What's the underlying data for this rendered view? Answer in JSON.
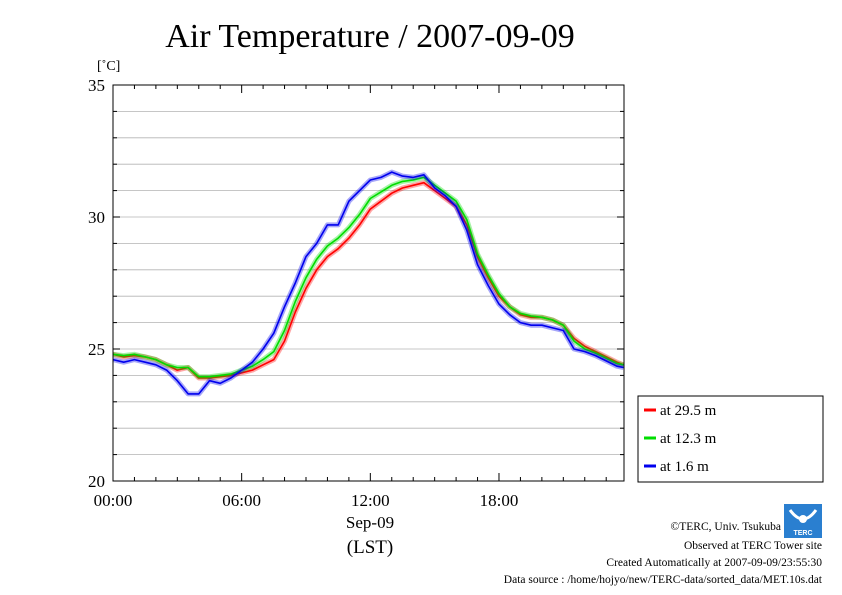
{
  "chart_data": {
    "type": "line",
    "title": "Air Temperature / 2007-09-09",
    "ylabel": "[˚C]",
    "xlabel_date": "Sep-09",
    "xlabel_tz": "(LST)",
    "ylim": [
      20,
      35
    ],
    "xlim": [
      0,
      23.83
    ],
    "y_ticks": [
      20,
      25,
      30,
      35
    ],
    "x_ticks": [
      {
        "value": 0,
        "label": "00:00"
      },
      {
        "value": 6,
        "label": "06:00"
      },
      {
        "value": 12,
        "label": "12:00"
      },
      {
        "value": 18,
        "label": "18:00"
      }
    ],
    "grid": "horizontal",
    "legend_placement": "right",
    "x": [
      0,
      0.5,
      1,
      1.5,
      2,
      2.5,
      3,
      3.5,
      4,
      4.5,
      5,
      5.5,
      6,
      6.5,
      7,
      7.5,
      8,
      8.5,
      9,
      9.5,
      10,
      10.5,
      11,
      11.5,
      12,
      12.5,
      13,
      13.5,
      14,
      14.5,
      15,
      15.5,
      16,
      16.5,
      17,
      17.5,
      18,
      18.5,
      19,
      19.5,
      20,
      20.5,
      21,
      21.5,
      22,
      22.5,
      23,
      23.5,
      23.8
    ],
    "series": [
      {
        "name": "at 29.5 m",
        "color": "#ff0000",
        "values": [
          24.8,
          24.7,
          24.75,
          24.7,
          24.6,
          24.4,
          24.2,
          24.3,
          23.9,
          23.9,
          23.95,
          24.0,
          24.1,
          24.2,
          24.4,
          24.6,
          25.3,
          26.4,
          27.3,
          28.0,
          28.5,
          28.8,
          29.2,
          29.7,
          30.3,
          30.6,
          30.9,
          31.1,
          31.2,
          31.3,
          31.0,
          30.7,
          30.4,
          29.7,
          28.5,
          27.7,
          27.0,
          26.6,
          26.3,
          26.2,
          26.2,
          26.1,
          25.9,
          25.4,
          25.1,
          24.9,
          24.7,
          24.5,
          24.4
        ]
      },
      {
        "name": "at 12.3 m",
        "color": "#00dd00",
        "values": [
          24.8,
          24.75,
          24.8,
          24.7,
          24.6,
          24.4,
          24.3,
          24.3,
          23.95,
          23.95,
          24.0,
          24.05,
          24.2,
          24.35,
          24.6,
          24.9,
          25.7,
          26.8,
          27.7,
          28.4,
          28.9,
          29.2,
          29.6,
          30.1,
          30.7,
          30.95,
          31.2,
          31.35,
          31.4,
          31.5,
          31.2,
          30.9,
          30.6,
          29.9,
          28.6,
          27.8,
          27.1,
          26.6,
          26.35,
          26.25,
          26.2,
          26.1,
          25.9,
          25.3,
          25.0,
          24.85,
          24.65,
          24.45,
          24.4
        ]
      },
      {
        "name": "at 1.6 m",
        "color": "#0000ee",
        "values": [
          24.6,
          24.5,
          24.6,
          24.5,
          24.4,
          24.2,
          23.8,
          23.3,
          23.3,
          23.8,
          23.7,
          23.9,
          24.2,
          24.5,
          25.0,
          25.6,
          26.6,
          27.5,
          28.5,
          29.0,
          29.7,
          29.7,
          30.6,
          31.0,
          31.4,
          31.5,
          31.7,
          31.55,
          31.5,
          31.6,
          31.1,
          30.8,
          30.4,
          29.5,
          28.2,
          27.4,
          26.7,
          26.3,
          26.0,
          25.9,
          25.9,
          25.8,
          25.7,
          25.0,
          24.9,
          24.75,
          24.55,
          24.35,
          24.3
        ]
      }
    ]
  },
  "credits": {
    "copyright": "©TERC, Univ. Tsukuba",
    "site": "Observed at TERC Tower site",
    "created": "Created Automatically at 2007-09-09/23:55:30",
    "source": "Data source : /home/hojyo/new/TERC-data/sorted_data/MET.10s.dat"
  },
  "logo": {
    "text": "TERC",
    "color": "#2a7fd0"
  }
}
